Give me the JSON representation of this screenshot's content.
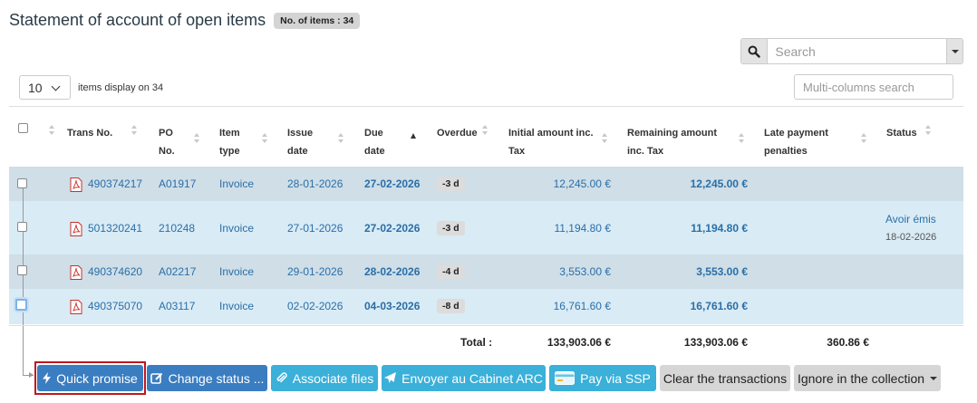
{
  "header": {
    "title": "Statement of account of open items",
    "badge": "No. of items : 34"
  },
  "search": {
    "placeholder": "Search"
  },
  "length": {
    "value": "10",
    "label": "items display on 34"
  },
  "multi_search": {
    "placeholder": "Multi-columns search"
  },
  "columns": {
    "trans_no": "Trans No.",
    "po_no_1": "PO",
    "po_no_2": "No.",
    "item_type_1": "Item",
    "item_type_2": "type",
    "issue_date_1": "Issue",
    "issue_date_2": "date",
    "due_date_1": "Due",
    "due_date_2": "date",
    "overdue": "Overdue",
    "initial_1": "Initial amount inc.",
    "initial_2": "Tax",
    "remaining_1": "Remaining amount",
    "remaining_2": "inc. Tax",
    "late_1": "Late payment",
    "late_2": "penalties",
    "status": "Status"
  },
  "rows": [
    {
      "trans": "490374217",
      "po": "A01917",
      "type": "Invoice",
      "issue": "28-01-2026",
      "due": "27-02-2026",
      "overdue": "-3 d",
      "initial": "12,245.00 €",
      "remaining": "12,245.00 €",
      "status_link": "",
      "status_date": ""
    },
    {
      "trans": "501320241",
      "po": "210248",
      "type": "Invoice",
      "issue": "27-01-2026",
      "due": "27-02-2026",
      "overdue": "-3 d",
      "initial": "11,194.80 €",
      "remaining": "11,194.80 €",
      "status_link": "Avoir émis",
      "status_date": "18-02-2026"
    },
    {
      "trans": "490374620",
      "po": "A02217",
      "type": "Invoice",
      "issue": "29-01-2026",
      "due": "28-02-2026",
      "overdue": "-4 d",
      "initial": "3,553.00 €",
      "remaining": "3,553.00 €",
      "status_link": "",
      "status_date": ""
    },
    {
      "trans": "490375070",
      "po": "A03117",
      "type": "Invoice",
      "issue": "02-02-2026",
      "due": "04-03-2026",
      "overdue": "-8 d",
      "initial": "16,761.60 €",
      "remaining": "16,761.60 €",
      "status_link": "",
      "status_date": ""
    }
  ],
  "totals": {
    "label": "Total :",
    "initial": "133,903.06 €",
    "remaining": "133,903.06 €",
    "late": "360.86 €"
  },
  "actions": {
    "quick_promise": "Quick promise",
    "change_status": "Change status ...",
    "associate_files": "Associate files",
    "envoyer": "Envoyer au Cabinet ARC",
    "pay_ssp": "Pay via SSP",
    "clear": "Clear the transactions",
    "ignore": "Ignore in the collection"
  },
  "colors": {
    "row_dark": "#cfdee7",
    "row_light": "#d9ebf5",
    "link": "#2a6fa8",
    "btn_blue": "#3a7dc1",
    "btn_cyan": "#3bb0d9",
    "highlight": "#c0161f"
  },
  "icons": {
    "search": "search-icon",
    "pdf": "pdf-icon",
    "bolt": "bolt-icon",
    "edit": "edit-icon",
    "paperclip": "paperclip-icon",
    "send": "paper-plane-icon",
    "card": "credit-card-icon"
  }
}
